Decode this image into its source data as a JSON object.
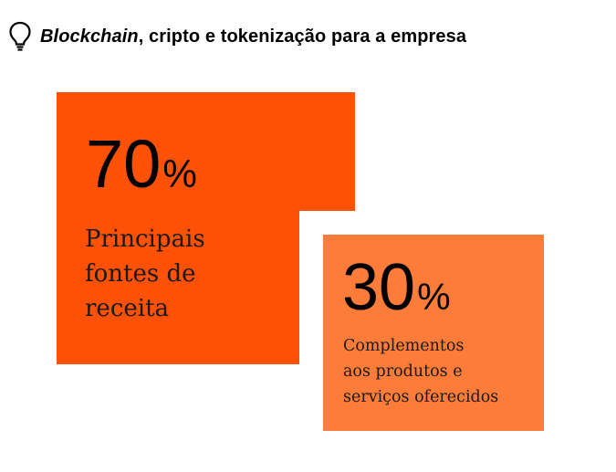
{
  "header": {
    "icon": "lightbulb-icon",
    "title_italic": "Blockchain",
    "title_rest": ", cripto e tokenização para a empresa"
  },
  "colors": {
    "primary_block": "#FD5108",
    "secondary_block": "#FE7C39",
    "notch": "#ffffff"
  },
  "chart_data": {
    "type": "area",
    "title": "Blockchain, cripto e tokenização para a empresa",
    "categories": [
      "Principais fontes de receita",
      "Complementos aos produtos e serviços oferecidos"
    ],
    "values": [
      70,
      30
    ],
    "unit": "%",
    "items": [
      {
        "value": "70",
        "unit": "%",
        "label_lines": [
          "Principais",
          "fontes de",
          "receita"
        ]
      },
      {
        "value": "30",
        "unit": "%",
        "label_lines": [
          "Complementos",
          "aos produtos e",
          "serviços oferecidos"
        ]
      }
    ]
  }
}
